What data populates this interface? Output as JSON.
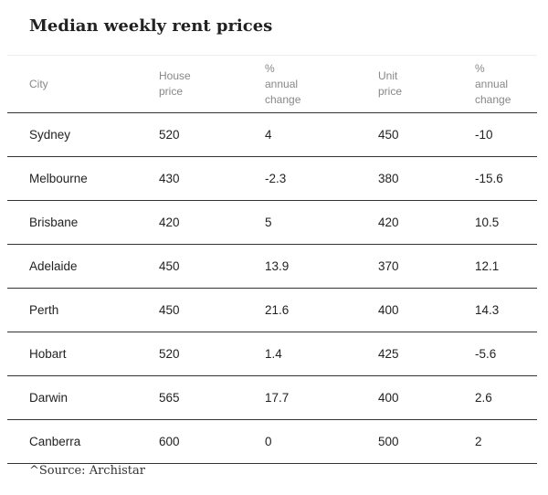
{
  "title": "Median weekly rent prices",
  "source": "^Source: Archistar",
  "chart_data": {
    "type": "table",
    "title": "Median weekly rent prices",
    "columns": [
      {
        "lines": [
          "City"
        ]
      },
      {
        "lines": [
          "House",
          "price"
        ]
      },
      {
        "lines": [
          "%",
          "annual",
          "change"
        ]
      },
      {
        "lines": [
          "Unit",
          "price"
        ]
      },
      {
        "lines": [
          "%",
          "annual",
          "change"
        ]
      }
    ],
    "rows": [
      [
        "Sydney",
        "520",
        "4",
        "450",
        "-10"
      ],
      [
        "Melbourne",
        "430",
        "-2.3",
        "380",
        "-15.6"
      ],
      [
        "Brisbane",
        "420",
        "5",
        "420",
        "10.5"
      ],
      [
        "Adelaide",
        "450",
        "13.9",
        "370",
        "12.1"
      ],
      [
        "Perth",
        "450",
        "21.6",
        "400",
        "14.3"
      ],
      [
        "Hobart",
        "520",
        "1.4",
        "425",
        "-5.6"
      ],
      [
        "Darwin",
        "565",
        "17.7",
        "400",
        "2.6"
      ],
      [
        "Canberra",
        "600",
        "0",
        "500",
        "2"
      ]
    ],
    "source": "^Source: Archistar"
  }
}
